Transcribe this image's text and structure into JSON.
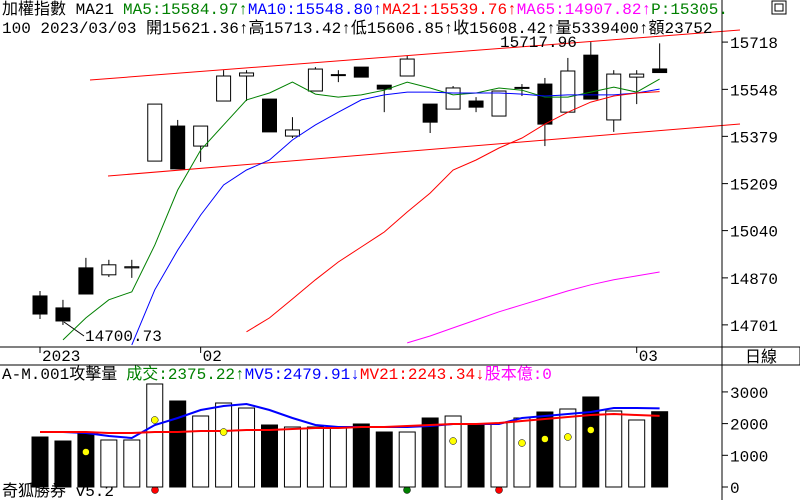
{
  "chart_data": [
    {
      "type": "candlestick",
      "title": "加權指數 MA21",
      "extra_label": {
        "text": "P:15305.",
        "color": "#008000"
      },
      "info": "100 2023/03/03 開15621.36↑高15713.42↑低15606.85↑收15608.42↑量5339400↑額23752",
      "high_label": "15717.96",
      "low_label": "14700.73",
      "period": "日線",
      "categories": [
        "2023",
        null,
        null,
        null,
        null,
        null,
        null,
        "02",
        null,
        null,
        null,
        null,
        null,
        null,
        null,
        null,
        null,
        null,
        null,
        null,
        null,
        null,
        null,
        null,
        null,
        null,
        "03",
        null
      ],
      "open": [
        14805,
        14762,
        14906,
        14881,
        14906,
        15290,
        15416,
        15344,
        15506,
        15596,
        15513,
        15380,
        15542,
        15599,
        15628,
        15563,
        15596,
        15495,
        15477,
        15506,
        15452,
        15553,
        15567,
        15466,
        15671,
        15438,
        15592,
        15621.36
      ],
      "high": [
        14823,
        14791,
        14942,
        14935,
        14935,
        15495,
        15438,
        15416,
        15617,
        15617,
        15513,
        15448,
        15628,
        15617,
        15628,
        15563,
        15668,
        15495,
        15560,
        15520,
        15542,
        15567,
        15589,
        15661,
        15717.96,
        15617,
        15617,
        15713.42
      ],
      "low": [
        14722,
        14700.73,
        14812,
        14873,
        14870,
        15290,
        15262,
        15287,
        15506,
        15506,
        15395,
        15373,
        15542,
        15574,
        15592,
        15466,
        15596,
        15391,
        15477,
        15466,
        15452,
        15524,
        15344,
        15466,
        15513,
        15395,
        15495,
        15606.85
      ],
      "close": [
        14740,
        14715,
        14812,
        14917,
        14910,
        15495,
        15262,
        15416,
        15596,
        15607,
        15395,
        15402,
        15621,
        15601,
        15592,
        15549,
        15657,
        15430,
        15553,
        15484,
        15542,
        15555,
        15423,
        15614,
        15513,
        15603,
        15603,
        15608.42
      ],
      "up_color": "#ffffff",
      "down_color": "#000000",
      "series": [
        {
          "name": "MA5:15584.97↑",
          "color": "#008000",
          "values": [
            null,
            14647,
            14726,
            14791,
            14820,
            14988,
            15186,
            15330,
            15420,
            15510,
            15535,
            15574,
            15531,
            15520,
            15528,
            15545,
            15574,
            15553,
            15528,
            15535,
            15553,
            15545,
            15520,
            15520,
            15538,
            15556,
            15538,
            15585
          ]
        },
        {
          "name": "MA10:15548.80↑",
          "color": "#0000ff",
          "values": [
            null,
            null,
            null,
            null,
            14629,
            14827,
            14970,
            15096,
            15204,
            15258,
            15294,
            15366,
            15420,
            15466,
            15510,
            15528,
            15538,
            15538,
            15535,
            15535,
            15535,
            15531,
            15524,
            15528,
            15528,
            15528,
            15535,
            15549
          ]
        },
        {
          "name": "MA21:15539.76↑",
          "color": "#ff0000",
          "values": [
            null,
            null,
            null,
            null,
            null,
            null,
            null,
            null,
            null,
            14676,
            14726,
            14794,
            14863,
            14927,
            14981,
            15035,
            15107,
            15175,
            15258,
            15294,
            15337,
            15373,
            15423,
            15466,
            15502,
            15524,
            15535,
            15540
          ]
        },
        {
          "name": "MA65:14907.82↑",
          "color": "#ff00ff",
          "values": [
            null,
            null,
            null,
            null,
            null,
            null,
            null,
            null,
            null,
            null,
            null,
            null,
            null,
            null,
            null,
            null,
            14636,
            14661,
            14690,
            14719,
            14748,
            14773,
            14798,
            14823,
            14845,
            14863,
            14877,
            14891
          ]
        }
      ],
      "ylim": [
        14625,
        15819
      ],
      "yticks": [
        15718,
        15548,
        15379,
        15209,
        15040,
        14870,
        14701
      ]
    },
    {
      "type": "bar",
      "title": "A-M.001攻擊量",
      "value_label": {
        "text": "成交:2375.22↑",
        "color": "#008000"
      },
      "extra_label": {
        "text": "股本億:0",
        "color": "#ff00ff"
      },
      "values": [
        1577,
        1451,
        1735,
        1483,
        1483,
        3250,
        2713,
        2240,
        2650,
        2492,
        1956,
        1893,
        1893,
        1893,
        1988,
        1735,
        1735,
        2177,
        2240,
        1988,
        2019,
        2177,
        2366,
        2461,
        2840,
        2398,
        2114,
        2375.22
      ],
      "series": [
        {
          "name": "MV5:2479.91↓",
          "color": "#0000ff",
          "values": [
            1735,
            1735,
            1704,
            1609,
            1546,
            1956,
            2177,
            2429,
            2556,
            2619,
            2429,
            2177,
            1956,
            1893,
            1893,
            1893,
            1893,
            1925,
            1988,
            1988,
            1988,
            2177,
            2240,
            2303,
            2366,
            2492,
            2492,
            2480
          ]
        },
        {
          "name": "MV21:2243.34↓",
          "color": "#ff0000",
          "values": [
            1735,
            1735,
            1735,
            1704,
            1704,
            1735,
            1735,
            1767,
            1767,
            1798,
            1798,
            1830,
            1861,
            1861,
            1893,
            1893,
            1925,
            1956,
            1988,
            1988,
            2019,
            2082,
            2145,
            2209,
            2272,
            2303,
            2272,
            2243
          ]
        },
        {
          "color": "#ffff00",
          "style": "dots",
          "values": [
            null,
            null,
            1104,
            null,
            null,
            2114,
            null,
            null,
            1735,
            null,
            null,
            null,
            null,
            null,
            null,
            null,
            null,
            null,
            1451,
            null,
            null,
            1388,
            1514,
            1577,
            1798,
            null,
            null,
            null
          ]
        }
      ],
      "ylim": [
        0,
        3849
      ],
      "yticks": [
        3000,
        2000,
        1000,
        0
      ]
    }
  ],
  "footer": "奇狐勝券 v5.2"
}
